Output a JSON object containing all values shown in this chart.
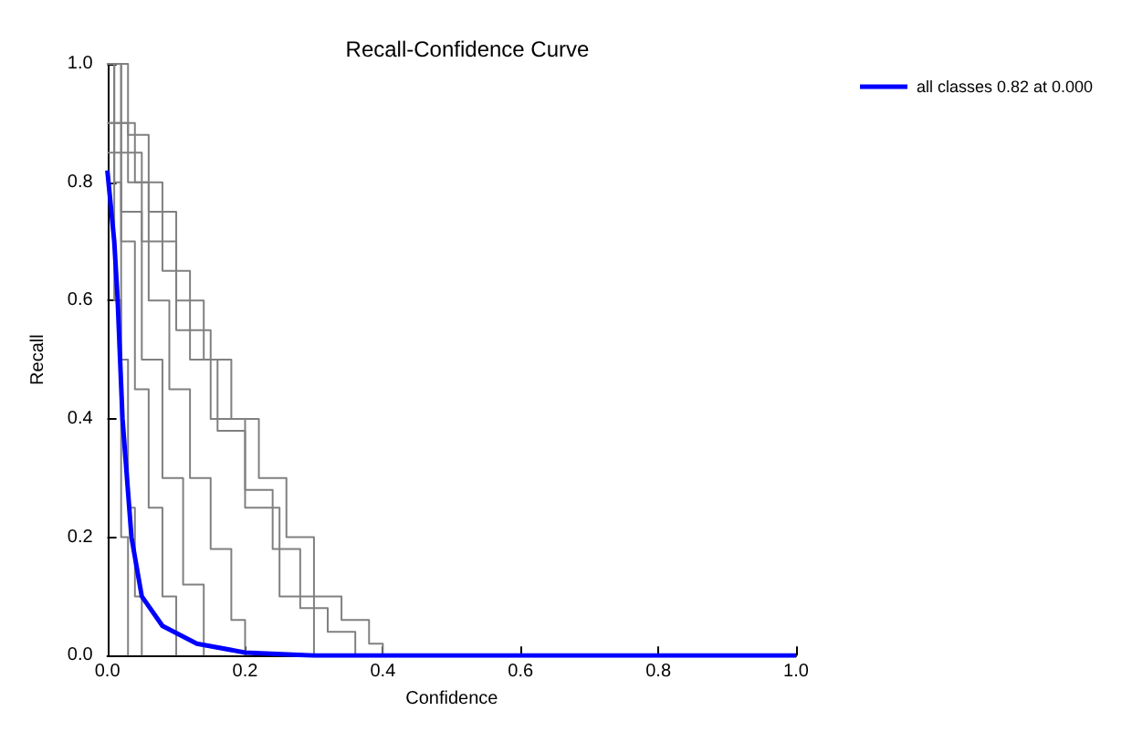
{
  "chart_data": {
    "type": "line",
    "title": "Recall-Confidence Curve",
    "xlabel": "Confidence",
    "ylabel": "Recall",
    "xlim": [
      0,
      1
    ],
    "ylim": [
      0,
      1
    ],
    "xticks": [
      {
        "value": 0,
        "label": "0.0"
      },
      0.2,
      0.4,
      0.6,
      0.8,
      {
        "value": 1,
        "label": "1.0"
      }
    ],
    "yticks": [
      {
        "value": 0,
        "label": "0.0"
      },
      0.2,
      0.4,
      0.6,
      0.8,
      {
        "value": 1,
        "label": "1.0"
      }
    ],
    "grid": false,
    "legend": "top right",
    "marker": "none",
    "line_style": "solid",
    "series": [
      {
        "type": "step",
        "color": "#808080",
        "x": [
          0,
          0.03,
          0.06,
          0.1,
          0.14,
          0.18,
          0.22,
          0.26,
          0.3,
          0.34,
          0.38,
          0.4
        ],
        "values": [
          0.9,
          0.88,
          0.75,
          0.6,
          0.5,
          0.4,
          0.3,
          0.2,
          0.1,
          0.06,
          0.02,
          0
        ]
      },
      {
        "type": "step",
        "color": "#808080",
        "x": [
          0,
          0.04,
          0.08,
          0.12,
          0.16,
          0.2,
          0.24,
          0.28,
          0.32,
          0.36
        ],
        "values": [
          0.9,
          0.8,
          0.65,
          0.5,
          0.38,
          0.28,
          0.18,
          0.08,
          0.04,
          0
        ]
      },
      {
        "type": "step",
        "color": "#808080",
        "x": [
          0,
          0.03,
          0.06,
          0.09,
          0.12,
          0.15,
          0.18,
          0.2
        ],
        "values": [
          1,
          0.8,
          0.6,
          0.45,
          0.3,
          0.18,
          0.06,
          0
        ]
      },
      {
        "type": "step",
        "color": "#808080",
        "x": [
          0,
          0.02,
          0.05,
          0.08,
          0.11,
          0.14
        ],
        "values": [
          1,
          0.75,
          0.5,
          0.3,
          0.12,
          0
        ]
      },
      {
        "type": "step",
        "color": "#808080",
        "x": [
          0,
          0.02,
          0.04,
          0.06,
          0.08,
          0.1
        ],
        "values": [
          1,
          0.7,
          0.45,
          0.25,
          0.1,
          0
        ]
      },
      {
        "type": "step",
        "color": "#808080",
        "x": [
          0,
          0.01,
          0.02,
          0.03,
          0.04,
          0.05
        ],
        "values": [
          1,
          0.8,
          0.5,
          0.25,
          0.1,
          0
        ]
      },
      {
        "type": "step",
        "color": "#808080",
        "x": [
          0,
          0.01,
          0.02,
          0.03
        ],
        "values": [
          1,
          0.6,
          0.2,
          0
        ]
      },
      {
        "type": "step",
        "color": "#808080",
        "x": [
          0,
          0.05,
          0.1,
          0.15,
          0.2,
          0.25,
          0.3
        ],
        "values": [
          0.85,
          0.7,
          0.55,
          0.4,
          0.25,
          0.1,
          0
        ]
      },
      {
        "name": "all classes 0.82 at 0.000",
        "color": "#0000ff",
        "x": [
          0,
          0.01,
          0.015,
          0.022,
          0.035,
          0.05,
          0.08,
          0.13,
          0.2,
          0.3,
          1
        ],
        "values": [
          0.82,
          0.7,
          0.6,
          0.4,
          0.2,
          0.1,
          0.05,
          0.02,
          0.005,
          0,
          0
        ]
      }
    ]
  }
}
